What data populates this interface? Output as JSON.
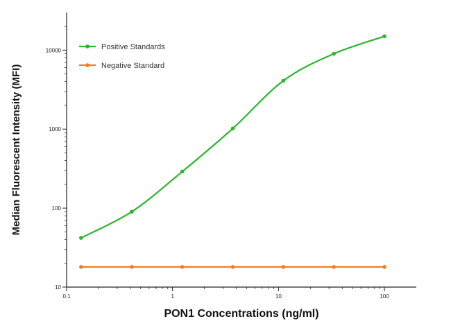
{
  "chart_data": {
    "type": "line",
    "title": "",
    "xlabel": "PON1 Concentrations (ng/ml)",
    "ylabel": "Median  Fluorescent Intensity  (MFI)",
    "xscale": "log",
    "yscale": "log",
    "xlim": [
      0.1,
      200
    ],
    "ylim": [
      10,
      30000
    ],
    "x_ticks": [
      0.1,
      1,
      10,
      100
    ],
    "x_tick_labels": [
      "0.1",
      "1",
      "10",
      "100"
    ],
    "y_ticks": [
      10,
      100,
      1000,
      10000
    ],
    "y_tick_labels": [
      "10",
      "100",
      "1000",
      "10000"
    ],
    "grid": false,
    "legend_position": "top-left",
    "series": [
      {
        "name": "Positive Standards",
        "color": "#2db52d",
        "marker": "circle",
        "fit": "sigmoidal curve",
        "x": [
          0.137,
          0.412,
          1.235,
          3.704,
          11.11,
          33.33,
          100
        ],
        "y": [
          42,
          90,
          290,
          1020,
          4100,
          9000,
          15000
        ]
      },
      {
        "name": "Negative Standard",
        "color": "#f07d1e",
        "marker": "circle",
        "fit": "line",
        "x": [
          0.137,
          0.412,
          1.235,
          3.704,
          11.11,
          33.33,
          100
        ],
        "y": [
          18,
          18,
          18,
          18,
          18,
          18,
          18
        ]
      }
    ]
  }
}
